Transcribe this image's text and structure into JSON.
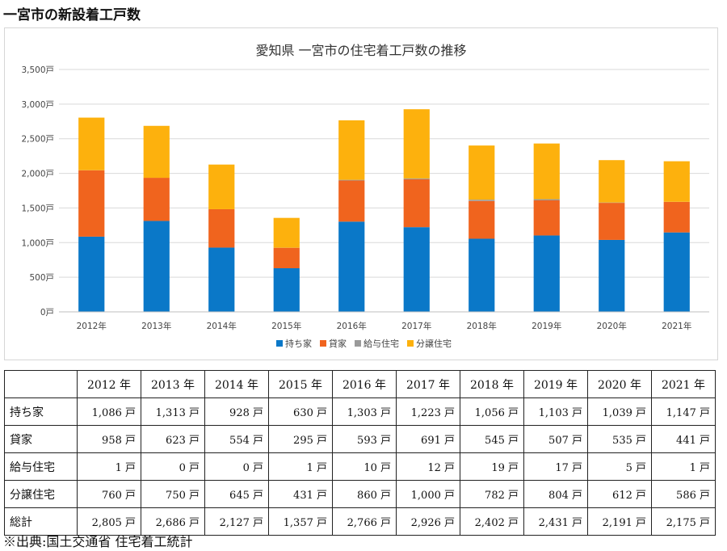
{
  "page": {
    "heading": "一宮市の新設着工戸数",
    "source": "※出典:国土交通省 住宅着工統計"
  },
  "chart_data": {
    "type": "bar",
    "stacked": true,
    "title": "愛知県 一宮市の住宅着工戸数の推移",
    "categories": [
      "2012年",
      "2013年",
      "2014年",
      "2015年",
      "2016年",
      "2017年",
      "2018年",
      "2019年",
      "2020年",
      "2021年"
    ],
    "series": [
      {
        "name": "持ち家",
        "color": "#0a78c8",
        "values": [
          1086,
          1313,
          928,
          630,
          1303,
          1223,
          1056,
          1103,
          1039,
          1147
        ]
      },
      {
        "name": "貸家",
        "color": "#f0641e",
        "values": [
          958,
          623,
          554,
          295,
          593,
          691,
          545,
          507,
          535,
          441
        ]
      },
      {
        "name": "給与住宅",
        "color": "#9a9a9a",
        "values": [
          1,
          0,
          0,
          1,
          10,
          12,
          19,
          17,
          5,
          1
        ]
      },
      {
        "name": "分譲住宅",
        "color": "#fdb10d",
        "values": [
          760,
          750,
          645,
          431,
          860,
          1000,
          782,
          804,
          612,
          586
        ]
      }
    ],
    "ylim": [
      0,
      3500
    ],
    "yticks": [
      {
        "value": 0,
        "label": "0戸"
      },
      {
        "value": 500,
        "label": "500戸"
      },
      {
        "value": 1000,
        "label": "1,000戸"
      },
      {
        "value": 1500,
        "label": "1,500戸"
      },
      {
        "value": 2000,
        "label": "2,000戸"
      },
      {
        "value": 2500,
        "label": "2,500戸"
      },
      {
        "value": 3000,
        "label": "3,000戸"
      },
      {
        "value": 3500,
        "label": "3,500戸"
      }
    ],
    "grid": true,
    "legend_position": "bottom"
  },
  "table": {
    "header": [
      "2012 年",
      "2013 年",
      "2014 年",
      "2015 年",
      "2016 年",
      "2017 年",
      "2018 年",
      "2019 年",
      "2020 年",
      "2021 年"
    ],
    "rows": [
      {
        "label": "持ち家",
        "cells": [
          "1,086 戸",
          "1,313 戸",
          "928 戸",
          "630 戸",
          "1,303 戸",
          "1,223 戸",
          "1,056 戸",
          "1,103 戸",
          "1,039 戸",
          "1,147 戸"
        ]
      },
      {
        "label": "貸家",
        "cells": [
          "958 戸",
          "623 戸",
          "554 戸",
          "295 戸",
          "593 戸",
          "691 戸",
          "545 戸",
          "507 戸",
          "535 戸",
          "441 戸"
        ]
      },
      {
        "label": "給与住宅",
        "cells": [
          "1 戸",
          "0 戸",
          "0 戸",
          "1 戸",
          "10 戸",
          "12 戸",
          "19 戸",
          "17 戸",
          "5 戸",
          "1 戸"
        ]
      },
      {
        "label": "分譲住宅",
        "cells": [
          "760 戸",
          "750 戸",
          "645 戸",
          "431 戸",
          "860 戸",
          "1,000 戸",
          "782 戸",
          "804 戸",
          "612 戸",
          "586 戸"
        ]
      },
      {
        "label": "総計",
        "cells": [
          "2,805 戸",
          "2,686 戸",
          "2,127 戸",
          "1,357 戸",
          "2,766 戸",
          "2,926 戸",
          "2,402 戸",
          "2,431 戸",
          "2,191 戸",
          "2,175 戸"
        ]
      }
    ]
  }
}
